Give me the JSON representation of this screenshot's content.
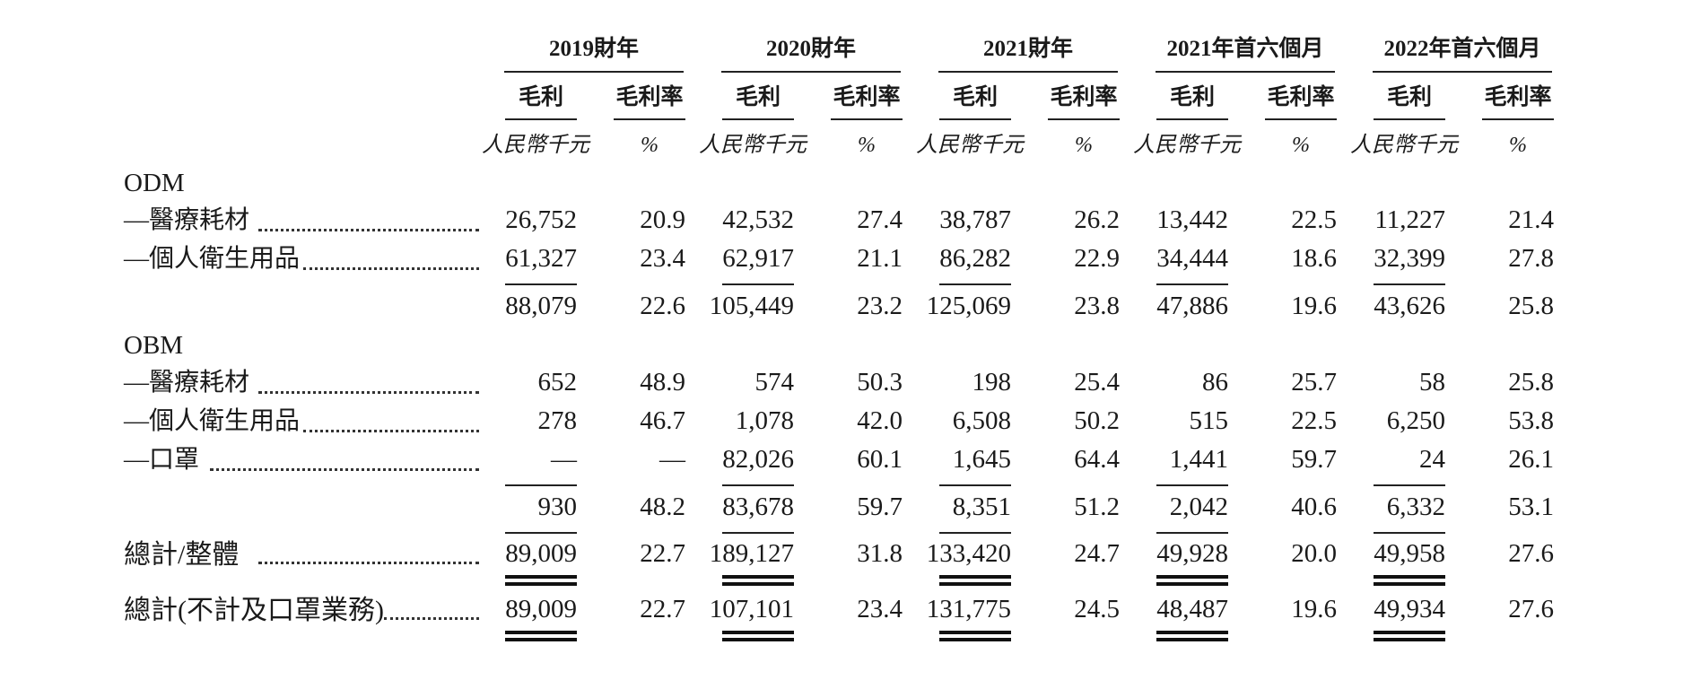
{
  "periods": [
    "2019財年",
    "2020財年",
    "2021財年",
    "2021年首六個月",
    "2022年首六個月"
  ],
  "sub_headers": {
    "gross_profit": "毛利",
    "margin": "毛利率"
  },
  "units": {
    "gross_profit": "人民幣千元",
    "margin": "%"
  },
  "sections": [
    {
      "title": "ODM",
      "rows": [
        {
          "label": "—醫療耗材",
          "values": [
            "26,752",
            "20.9",
            "42,532",
            "27.4",
            "38,787",
            "26.2",
            "13,442",
            "22.5",
            "11,227",
            "21.4"
          ]
        },
        {
          "label": "—個人衛生用品",
          "values": [
            "61,327",
            "23.4",
            "62,917",
            "21.1",
            "86,282",
            "22.9",
            "34,444",
            "18.6",
            "32,399",
            "27.8"
          ]
        }
      ],
      "subtotal": [
        "88,079",
        "22.6",
        "105,449",
        "23.2",
        "125,069",
        "23.8",
        "47,886",
        "19.6",
        "43,626",
        "25.8"
      ]
    },
    {
      "title": "OBM",
      "rows": [
        {
          "label": "—醫療耗材",
          "values": [
            "652",
            "48.9",
            "574",
            "50.3",
            "198",
            "25.4",
            "86",
            "25.7",
            "58",
            "25.8"
          ]
        },
        {
          "label": "—個人衛生用品",
          "values": [
            "278",
            "46.7",
            "1,078",
            "42.0",
            "6,508",
            "50.2",
            "515",
            "22.5",
            "6,250",
            "53.8"
          ]
        },
        {
          "label": "—口罩",
          "values": [
            "—",
            "—",
            "82,026",
            "60.1",
            "1,645",
            "64.4",
            "1,441",
            "59.7",
            "24",
            "26.1"
          ]
        }
      ],
      "subtotal": [
        "930",
        "48.2",
        "83,678",
        "59.7",
        "8,351",
        "51.2",
        "2,042",
        "40.6",
        "6,332",
        "53.1"
      ]
    }
  ],
  "totals": [
    {
      "label": "總計/整體",
      "values": [
        "89,009",
        "22.7",
        "189,127",
        "31.8",
        "133,420",
        "24.7",
        "49,928",
        "20.0",
        "49,958",
        "27.6"
      ]
    },
    {
      "label": "總計(不計及口罩業務)",
      "values": [
        "89,009",
        "22.7",
        "107,101",
        "23.4",
        "131,775",
        "24.5",
        "48,487",
        "19.6",
        "49,934",
        "27.6"
      ]
    }
  ]
}
